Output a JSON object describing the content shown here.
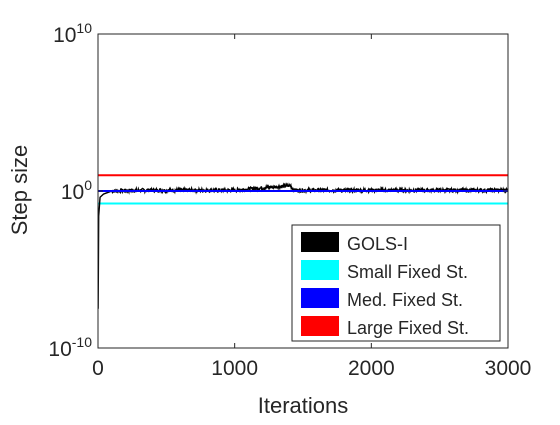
{
  "chart_data": {
    "type": "line",
    "title": "",
    "xlabel": "Iterations",
    "ylabel": "Step size",
    "xlim": [
      0,
      3000
    ],
    "ylim_log10": [
      -10,
      10
    ],
    "yscale": "log",
    "grid": false,
    "legend_position": "bottom-right",
    "x_ticks": [
      {
        "value": 0,
        "label": "0"
      },
      {
        "value": 1000,
        "label": "1000"
      },
      {
        "value": 2000,
        "label": "2000"
      },
      {
        "value": 3000,
        "label": "3000"
      }
    ],
    "y_ticks": [
      {
        "exp": -10,
        "base": "10",
        "sup": "-10"
      },
      {
        "exp": 0,
        "base": "10",
        "sup": "0"
      },
      {
        "exp": 10,
        "base": "10",
        "sup": "10"
      }
    ],
    "series": [
      {
        "name": "GOLS-I",
        "color": "#000000",
        "kind": "noisy",
        "log10_points": [
          [
            1,
            -7.5
          ],
          [
            5,
            -1.6
          ],
          [
            15,
            -0.4
          ],
          [
            40,
            -0.2
          ],
          [
            100,
            0.0
          ],
          [
            300,
            0.05
          ],
          [
            1000,
            0.05
          ],
          [
            1410,
            0.35
          ],
          [
            1430,
            0.05
          ],
          [
            2000,
            0.05
          ],
          [
            3000,
            0.05
          ]
        ],
        "log10_noise": 0.12
      },
      {
        "name": "Small Fixed St.",
        "color": "#00ffff",
        "kind": "constant",
        "log10_value": -0.8
      },
      {
        "name": "Med. Fixed St.",
        "color": "#0000ff",
        "kind": "constant",
        "log10_value": 0.0
      },
      {
        "name": "Large Fixed St.",
        "color": "#ff0000",
        "kind": "constant",
        "log10_value": 1.0
      }
    ]
  }
}
